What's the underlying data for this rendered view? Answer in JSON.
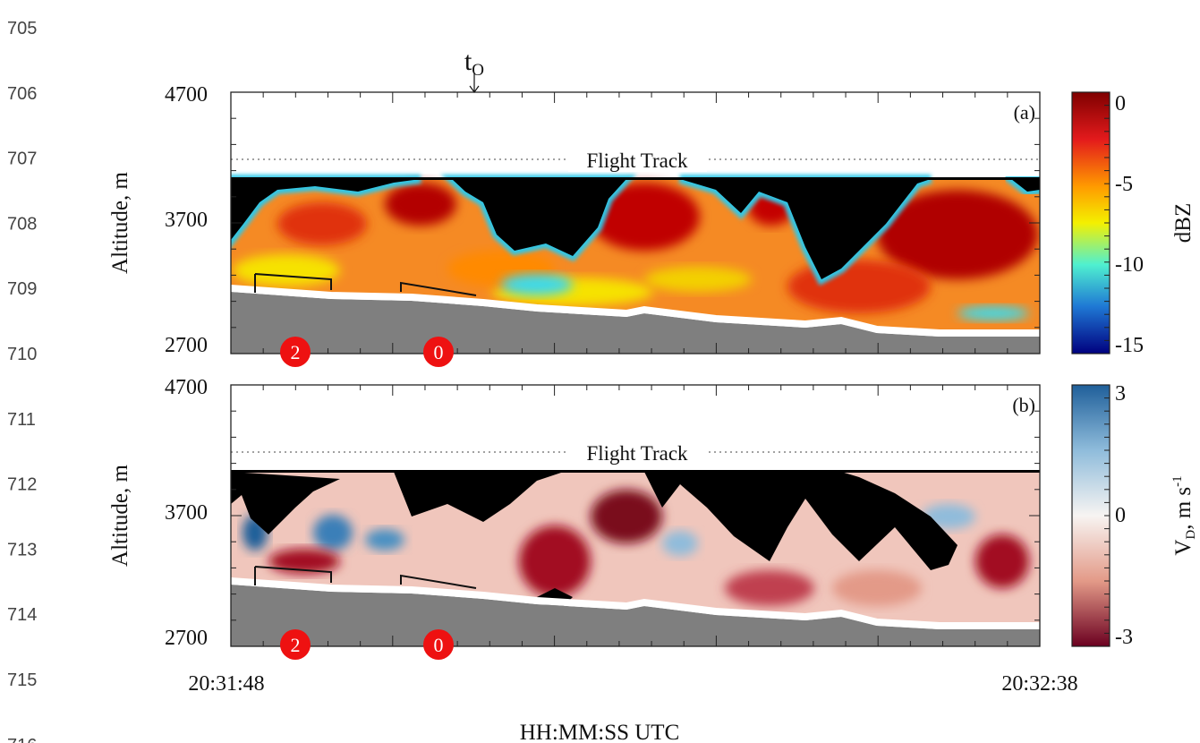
{
  "line_numbers": [
    "705",
    "706",
    "707",
    "708",
    "709",
    "710",
    "711",
    "712",
    "713",
    "714",
    "715",
    "716"
  ],
  "figure": {
    "top_marker": {
      "text": "t",
      "subscript": "O"
    },
    "x_ticks": [
      "20:31:48",
      "20:32:38"
    ],
    "x_label": "HH:MM:SS UTC",
    "panels": [
      {
        "tag": "(a)",
        "y_label": "Altitude, m",
        "y_ticks": [
          "4700",
          "3700",
          "2700"
        ],
        "track_label": "Flight Track",
        "markers": [
          "2",
          "0"
        ],
        "colorbar": {
          "label": "dBZ",
          "ticks": [
            "0",
            "-5",
            "-10",
            "-15"
          ]
        }
      },
      {
        "tag": "(b)",
        "y_label": "Altitude, m",
        "y_ticks": [
          "4700",
          "3700",
          "2700"
        ],
        "track_label": "Flight Track",
        "markers": [
          "2",
          "0"
        ],
        "colorbar": {
          "label": "V",
          "label_sub": "D",
          "label_rest": ", m s",
          "label_sup": "-1",
          "ticks": [
            "3",
            "0",
            "-3"
          ]
        }
      }
    ]
  }
}
